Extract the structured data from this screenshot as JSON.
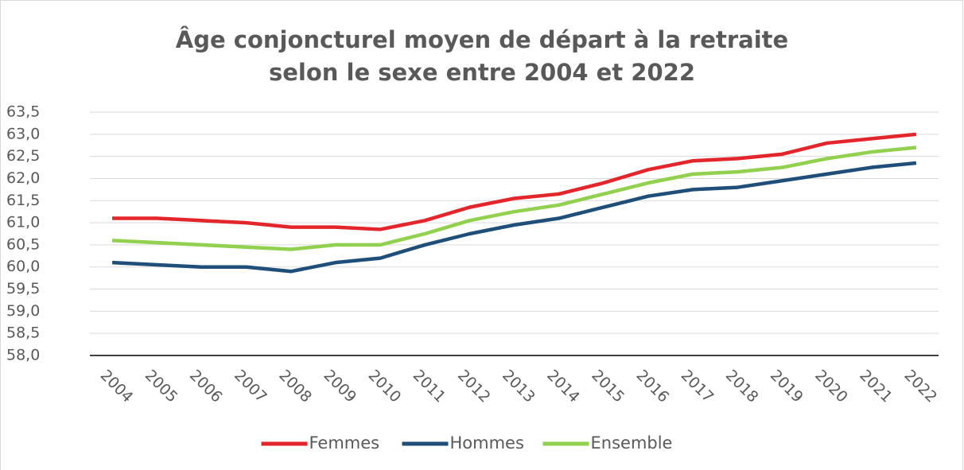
{
  "chart_data": {
    "type": "line",
    "title": [
      "Âge conjoncturel moyen de départ à la retraite",
      "selon le sexe entre 2004 et 2022"
    ],
    "categories": [
      "2004",
      "2005",
      "2006",
      "2007",
      "2008",
      "2009",
      "2010",
      "2011",
      "2012",
      "2013",
      "2014",
      "2015",
      "2016",
      "2017",
      "2018",
      "2019",
      "2020",
      "2021",
      "2022"
    ],
    "series": [
      {
        "name": "Femmes",
        "color": "#e3262b",
        "values": [
          61.1,
          61.1,
          61.05,
          61.0,
          60.9,
          60.9,
          60.85,
          61.05,
          61.35,
          61.55,
          61.65,
          61.9,
          62.2,
          62.4,
          62.45,
          62.55,
          62.8,
          62.9,
          63.0
        ]
      },
      {
        "name": "Hommes",
        "color": "#1f4e79",
        "values": [
          60.1,
          60.05,
          60.0,
          60.0,
          59.9,
          60.1,
          60.2,
          60.5,
          60.75,
          60.95,
          61.1,
          61.35,
          61.6,
          61.75,
          61.8,
          61.95,
          62.1,
          62.25,
          62.35
        ]
      },
      {
        "name": "Ensemble",
        "color": "#92d050",
        "values": [
          60.6,
          60.55,
          60.5,
          60.45,
          60.4,
          60.5,
          60.5,
          60.75,
          61.05,
          61.25,
          61.4,
          61.65,
          61.9,
          62.1,
          62.15,
          62.25,
          62.45,
          62.6,
          62.7
        ]
      }
    ],
    "ylim": [
      58,
      63.5
    ],
    "yticks": [
      {
        "value": 58,
        "label": "58,0"
      },
      {
        "value": 58.5,
        "label": "58,5"
      },
      {
        "value": 59,
        "label": "59,0"
      },
      {
        "value": 59.5,
        "label": "59,5"
      },
      {
        "value": 60,
        "label": "60,0"
      },
      {
        "value": 60.5,
        "label": "60,5"
      },
      {
        "value": 61,
        "label": "61,0"
      },
      {
        "value": 61.5,
        "label": "61,5"
      },
      {
        "value": 62,
        "label": "62,0"
      },
      {
        "value": 62.5,
        "label": "62,5"
      },
      {
        "value": 63,
        "label": "63,0"
      },
      {
        "value": 63.5,
        "label": "63,5"
      }
    ],
    "grid": true,
    "legend": "bottom"
  }
}
